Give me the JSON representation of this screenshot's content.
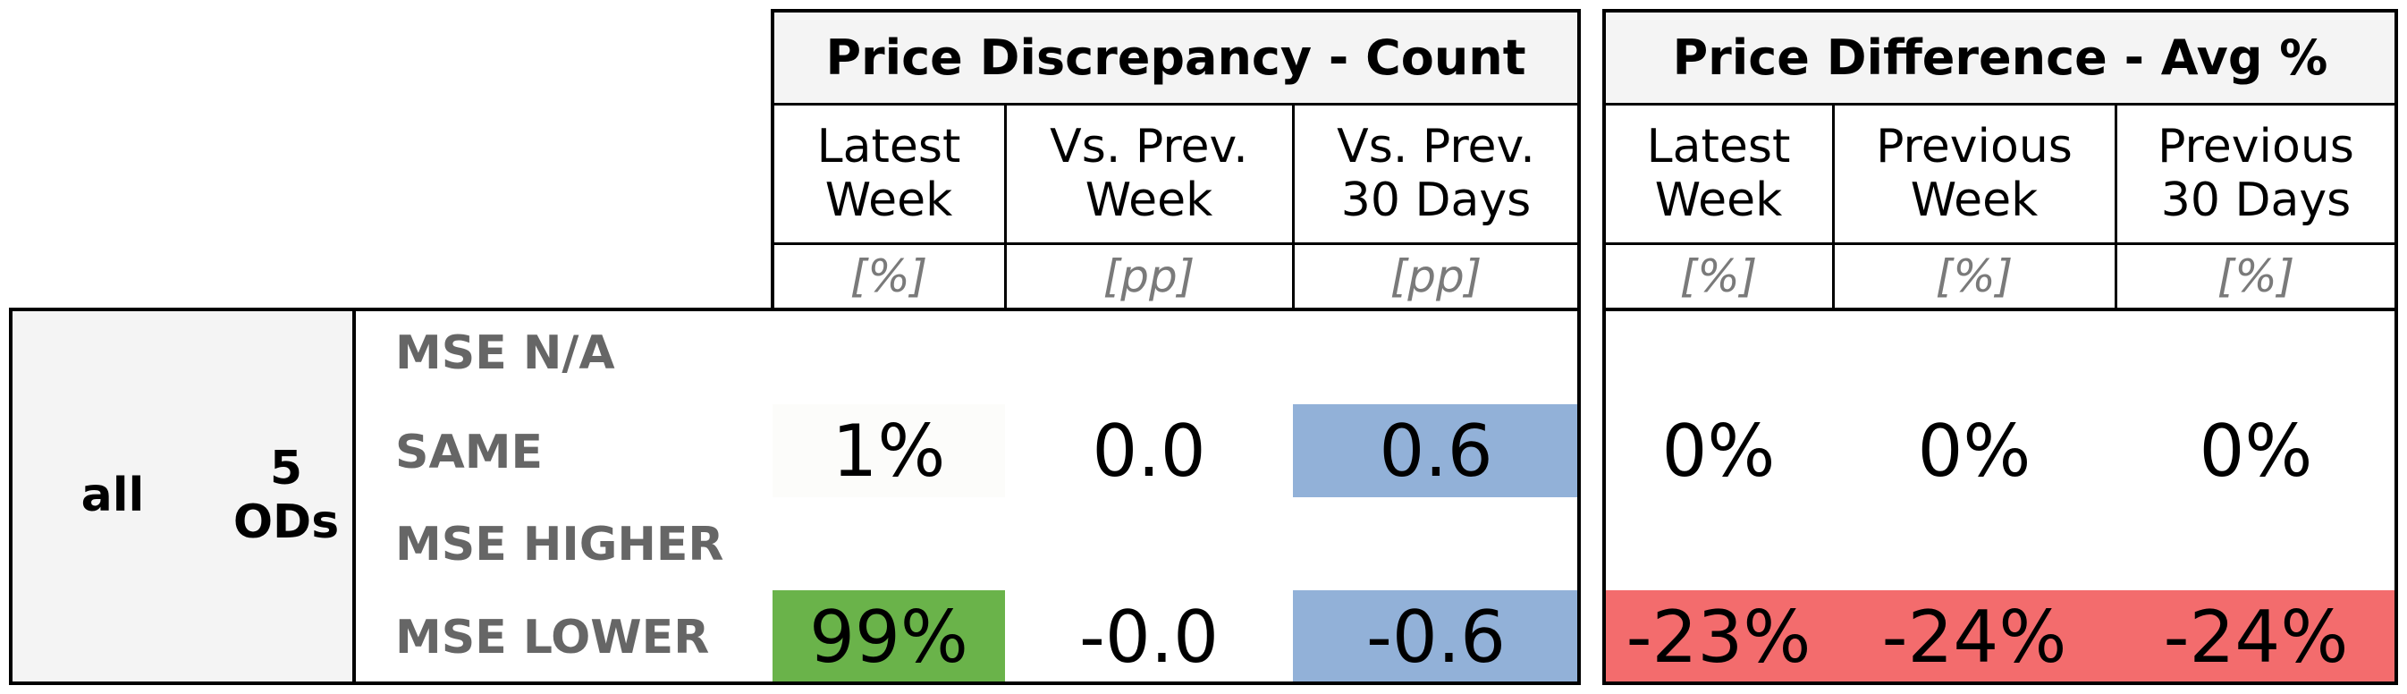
{
  "chart_data": {
    "type": "table",
    "groups": [
      {
        "title": "Price Discrepancy - Count",
        "columns": [
          {
            "label": "Latest\nWeek",
            "unit": "[%]"
          },
          {
            "label": "Vs. Prev.\nWeek",
            "unit": "[pp]"
          },
          {
            "label": "Vs. Prev.\n30 Days",
            "unit": "[pp]"
          }
        ]
      },
      {
        "title": "Price Difference - Avg %",
        "columns": [
          {
            "label": "Latest\nWeek",
            "unit": "[%]"
          },
          {
            "label": "Previous\nWeek",
            "unit": "[%]"
          },
          {
            "label": "Previous\n30 Days",
            "unit": "[%]"
          }
        ]
      }
    ],
    "scope": {
      "name": "all",
      "od_count": "5\nODs"
    },
    "rows": [
      {
        "label": "MSE N/A",
        "cells": [
          "",
          "",
          "",
          "",
          "",
          ""
        ]
      },
      {
        "label": "SAME",
        "cells": [
          "1%",
          "0.0",
          "0.6",
          "0%",
          "0%",
          "0%"
        ]
      },
      {
        "label": "MSE HIGHER",
        "cells": [
          "",
          "",
          "",
          "",
          "",
          ""
        ]
      },
      {
        "label": "MSE LOWER",
        "cells": [
          "99%",
          "-0.0",
          "-0.6",
          "-23%",
          "-24%",
          "-24%"
        ]
      }
    ],
    "cell_colors": [
      [
        "",
        "",
        "",
        "",
        "",
        ""
      ],
      [
        "#fcfcfa",
        "",
        "#92b1d8",
        "",
        "",
        ""
      ],
      [
        "",
        "",
        "",
        "",
        "",
        ""
      ],
      [
        "#6ab34a",
        "",
        "#92b1d8",
        "#f36c6d",
        "#f36c6d",
        "#f36c6d"
      ]
    ]
  }
}
